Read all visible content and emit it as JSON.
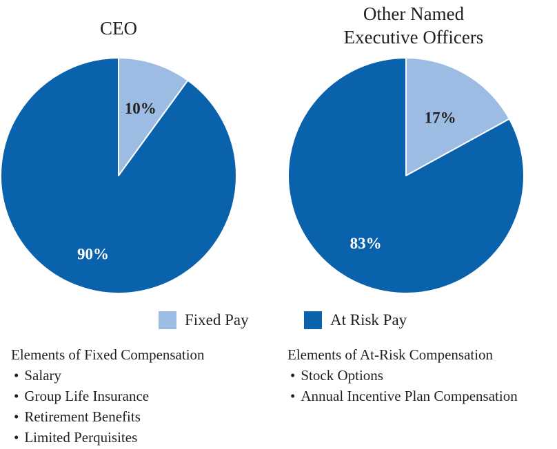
{
  "colors": {
    "fixed": "#9dbce3",
    "at_risk": "#0a62ac",
    "label_dark": "#231f20",
    "label_light": "#ffffff"
  },
  "legend": {
    "fixed_label": "Fixed Pay",
    "at_risk_label": "At Risk Pay"
  },
  "chart_data": [
    {
      "type": "pie",
      "title": "CEO",
      "categories": [
        "Fixed Pay",
        "At Risk Pay"
      ],
      "values": [
        10,
        90
      ],
      "value_labels": [
        "10%",
        "90%"
      ],
      "start_angle_deg": 0,
      "legend_position": "bottom"
    },
    {
      "type": "pie",
      "title_lines": [
        "Other Named",
        "Executive Officers"
      ],
      "categories": [
        "Fixed Pay",
        "At Risk Pay"
      ],
      "values": [
        17,
        83
      ],
      "value_labels": [
        "17%",
        "83%"
      ],
      "start_angle_deg": 0,
      "legend_position": "bottom"
    }
  ],
  "fixed_elements": {
    "heading": "Elements of Fixed Compensation",
    "items": [
      "Salary",
      "Group Life Insurance",
      "Retirement Benefits",
      "Limited Perquisites"
    ]
  },
  "at_risk_elements": {
    "heading": "Elements of At-Risk Compensation",
    "items": [
      "Stock Options",
      "Annual Incentive Plan Compensation"
    ]
  }
}
